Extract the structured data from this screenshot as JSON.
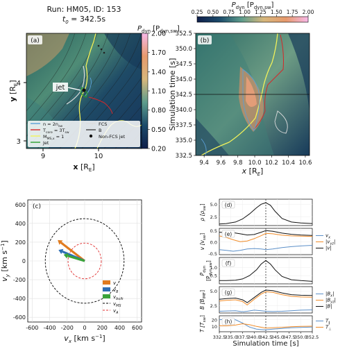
{
  "title": {
    "run_line": "Run: HM05, ID: 153",
    "t0_label": "t",
    "t0_sub": "0",
    "t0_value": " = 342.5s"
  },
  "chart_data": [
    {
      "panel": "a",
      "type": "heatmap",
      "tag": "(a)",
      "xlabel": "x",
      "xlabel_unit": " [R",
      "ylabel": "y",
      "ylabel_unit": " [R",
      "xticks": [
        "9",
        "10"
      ],
      "yticks": [
        "3",
        "4"
      ],
      "colorbar": {
        "label": "P",
        "label_sub": "dyn",
        "label_unit": "[P",
        "label_unit_sub": "dyn,sw",
        "ticks": [
          "0.20",
          "0.50",
          "0.80",
          "1.10",
          "1.40",
          "1.70",
          "2.00"
        ],
        "range": [
          0.2,
          2.0
        ]
      },
      "annotation": "jet",
      "legend": [
        {
          "label": "n = 2n",
          "sub": "sw",
          "style": "line",
          "color": "#5a9fd6"
        },
        {
          "label": "T",
          "sub": "core",
          "rest": " = 3T",
          "rest_sub": "sw",
          "style": "line",
          "color": "#d62728"
        },
        {
          "label": "M",
          "sub": "MS,x",
          "rest": " = 1",
          "style": "line",
          "color": "#f2f25a"
        },
        {
          "label": "Jet",
          "style": "line",
          "color": "#2ca02c"
        },
        {
          "label": "FCS",
          "style": "line",
          "color": "#dddddd"
        },
        {
          "label": "B",
          "style": "line",
          "color": "#444444"
        },
        {
          "label": "Non-FCS jet",
          "style": "dot",
          "color": "#111111"
        }
      ]
    },
    {
      "panel": "b",
      "type": "heatmap",
      "tag": "(b)",
      "xlabel": "x",
      "xlabel_unit": " [R",
      "ylabel": "Simulation time [s]",
      "xticks": [
        "9.4",
        "9.6",
        "9.8",
        "10.0",
        "10.2",
        "10.4",
        "10.6"
      ],
      "yticks": [
        "332.5",
        "335.0",
        "337.5",
        "340.0",
        "342.5",
        "345.0",
        "347.5",
        "350.0",
        "352.5"
      ],
      "hline_at": 342.5,
      "colorbar": {
        "label": "P",
        "label_sub": "dyn",
        "label_unit": "[P",
        "label_unit_sub": "dyn,sw",
        "ticks": [
          "0.25",
          "0.50",
          "0.75",
          "1.00",
          "1.25",
          "1.50",
          "1.75",
          "2.00"
        ],
        "range": [
          0.25,
          2.0
        ]
      }
    },
    {
      "panel": "c",
      "type": "scatter",
      "tag": "(c)",
      "xlabel": "v",
      "xlabel_sub": "x",
      "xlabel_unit": " [km s",
      "ylabel": "v",
      "ylabel_sub": "y",
      "ylabel_unit": " [km s",
      "xlim": [
        -650,
        650
      ],
      "ylim": [
        -650,
        650
      ],
      "ticks": [
        -600,
        -400,
        -200,
        0,
        200,
        400,
        600
      ],
      "grid": true,
      "circles": [
        {
          "name": "v",
          "name_sub": "MS",
          "radius": 450,
          "color": "#000000"
        },
        {
          "name": "v",
          "name_sub": "A",
          "radius": 190,
          "color": "#e03030"
        }
      ],
      "vectors": [
        {
          "name": "v",
          "components": [
            -270,
            195
          ],
          "color": "#e07b1f"
        },
        {
          "name": "v",
          "name_sub": "B",
          "components": [
            -255,
            100
          ],
          "color": "#2f6fb5"
        },
        {
          "name": "v",
          "name_sub": "bulk",
          "components": [
            -195,
            55
          ],
          "color": "#3aa33a"
        }
      ],
      "legend_position": "bottom-right"
    },
    {
      "panel": "d",
      "type": "line",
      "tag": "(d)",
      "ylabel": "ρ [ρ",
      "ylabel_sub": "sw",
      "ylim": [
        0.8,
        6.0
      ],
      "yticks": [
        2.5,
        5.0
      ],
      "xlim": [
        332.5,
        352.5
      ],
      "vline_at": 342.5,
      "series": [
        {
          "color": "#111111",
          "x": [
            332.5,
            334,
            336,
            337.5,
            339,
            340.5,
            341.5,
            342.5,
            343.5,
            344.5,
            346,
            348,
            350,
            352.5
          ],
          "values": [
            1.1,
            1.2,
            1.5,
            2.1,
            3.1,
            4.3,
            5.0,
            5.3,
            4.8,
            3.6,
            2.2,
            1.5,
            1.3,
            1.2
          ]
        }
      ]
    },
    {
      "panel": "e",
      "type": "line",
      "tag": "(e)",
      "ylabel": "v [v",
      "ylabel_sub": "sw",
      "ylim": [
        -0.55,
        0.6
      ],
      "yticks": [
        -0.5,
        0.0,
        0.5
      ],
      "xlim": [
        332.5,
        352.5
      ],
      "vline_at": 342.5,
      "legend_position": "right",
      "series": [
        {
          "name": "v",
          "name_sub": "x",
          "color": "#5b8fc8",
          "x": [
            332.5,
            334,
            335.5,
            337,
            338.5,
            340,
            341.5,
            342.5,
            344,
            346,
            348,
            350,
            352.5
          ],
          "values": [
            -0.33,
            -0.36,
            -0.4,
            -0.36,
            -0.3,
            -0.28,
            -0.3,
            -0.33,
            -0.3,
            -0.24,
            -0.2,
            -0.17,
            -0.14
          ]
        },
        {
          "name": "|v",
          "name_sub": "yz",
          "name_end": "|",
          "color": "#f28c28",
          "x": [
            332.5,
            334,
            335.5,
            337,
            338.5,
            340,
            341.5,
            342.5,
            344,
            346,
            348,
            350,
            352.5
          ],
          "values": [
            0.27,
            0.2,
            0.1,
            0.02,
            0.05,
            0.15,
            0.28,
            0.38,
            0.36,
            0.3,
            0.27,
            0.26,
            0.25
          ]
        },
        {
          "name": "|v|",
          "color": "#111111",
          "x": [
            332.5,
            334,
            335.5,
            337,
            338.5,
            340,
            341.5,
            342.5,
            344,
            346,
            348,
            350,
            352.5
          ],
          "values": [
            0.43,
            0.41,
            0.41,
            0.36,
            0.31,
            0.33,
            0.43,
            0.5,
            0.47,
            0.39,
            0.34,
            0.31,
            0.29
          ]
        }
      ]
    },
    {
      "panel": "f",
      "type": "line",
      "tag": "(f)",
      "ylabel": "P",
      "ylabel_sub": "dyn",
      "ylabel_line2": "[P",
      "ylabel_line2_sub": "dyn,sw",
      "ylim": [
        0.0,
        1.6
      ],
      "yticks": [
        0.5,
        1.0
      ],
      "xlim": [
        332.5,
        352.5
      ],
      "vline_at": 342.5,
      "series": [
        {
          "color": "#111111",
          "x": [
            332.5,
            334,
            336,
            337.5,
            339,
            340.5,
            341.5,
            342.5,
            343.5,
            344.5,
            346,
            348,
            350,
            352.5
          ],
          "values": [
            0.2,
            0.2,
            0.22,
            0.3,
            0.5,
            0.85,
            1.2,
            1.42,
            1.2,
            0.85,
            0.45,
            0.25,
            0.2,
            0.15
          ]
        }
      ]
    },
    {
      "panel": "g",
      "type": "line",
      "tag": "(g)",
      "ylabel": "B [B",
      "ylabel_sub": "IMF",
      "ylim": [
        1.2,
        5.8
      ],
      "yticks": [
        2.5,
        5.0
      ],
      "xlim": [
        332.5,
        352.5
      ],
      "vline_at": 342.5,
      "legend_position": "right",
      "series": [
        {
          "name": "|B",
          "name_sub": "x",
          "name_end": "|",
          "color": "#5b8fc8",
          "x": [
            332.5,
            334,
            336,
            337.5,
            338.5,
            340,
            341.5,
            342.5,
            344,
            346,
            348,
            350,
            352.5
          ],
          "values": [
            1.5,
            1.55,
            1.6,
            1.4,
            1.5,
            1.7,
            1.6,
            1.5,
            1.45,
            1.5,
            1.6,
            1.7,
            1.75
          ]
        },
        {
          "name": "|B",
          "name_sub": "yz",
          "name_end": "|",
          "color": "#f28c28",
          "x": [
            332.5,
            334,
            336,
            337.5,
            338.5,
            340,
            341.5,
            342.5,
            344,
            346,
            348,
            350,
            352.5
          ],
          "values": [
            3.3,
            3.4,
            3.5,
            3.2,
            2.6,
            3.6,
            4.5,
            4.9,
            4.8,
            4.4,
            4.1,
            4.0,
            3.95
          ]
        },
        {
          "name": "|B|",
          "color": "#111111",
          "x": [
            332.5,
            334,
            336,
            337.5,
            338.5,
            340,
            341.5,
            342.5,
            344,
            346,
            348,
            350,
            352.5
          ],
          "values": [
            3.6,
            3.7,
            3.8,
            3.5,
            3.0,
            3.9,
            4.8,
            5.2,
            5.1,
            4.7,
            4.4,
            4.3,
            4.25
          ]
        }
      ]
    },
    {
      "panel": "h",
      "type": "line",
      "tag": "(h)",
      "ylabel": "T [T",
      "ylabel_sub": "sw",
      "ylim": [
        2,
        26
      ],
      "yticks": [
        10,
        20
      ],
      "xlim": [
        332.5,
        352.5
      ],
      "xticks": [
        332.5,
        335.0,
        337.5,
        340.0,
        342.5,
        345.0,
        347.5,
        350.0,
        352.5
      ],
      "xlabel": "Simulation time [s]",
      "vline_at": 342.5,
      "legend_position": "right",
      "series": [
        {
          "name": "T",
          "name_sub": "∥",
          "color": "#5b8fc8",
          "x": [
            332.5,
            334,
            336,
            337.5,
            339,
            340.5,
            342,
            342.5,
            344,
            346,
            348,
            350,
            352.5
          ],
          "values": [
            20,
            21,
            20,
            15,
            9,
            6,
            5,
            5,
            6,
            7,
            8,
            8.5,
            9
          ]
        },
        {
          "name": "T",
          "name_sub": "⊥",
          "color": "#f28c28",
          "x": [
            332.5,
            334,
            336,
            337.5,
            339,
            340.5,
            342,
            342.5,
            344,
            346,
            348,
            350,
            352.5
          ],
          "values": [
            11,
            11,
            12,
            14,
            12.5,
            10,
            8,
            7.5,
            7.8,
            8.5,
            9.5,
            10,
            10.3
          ]
        }
      ]
    }
  ]
}
